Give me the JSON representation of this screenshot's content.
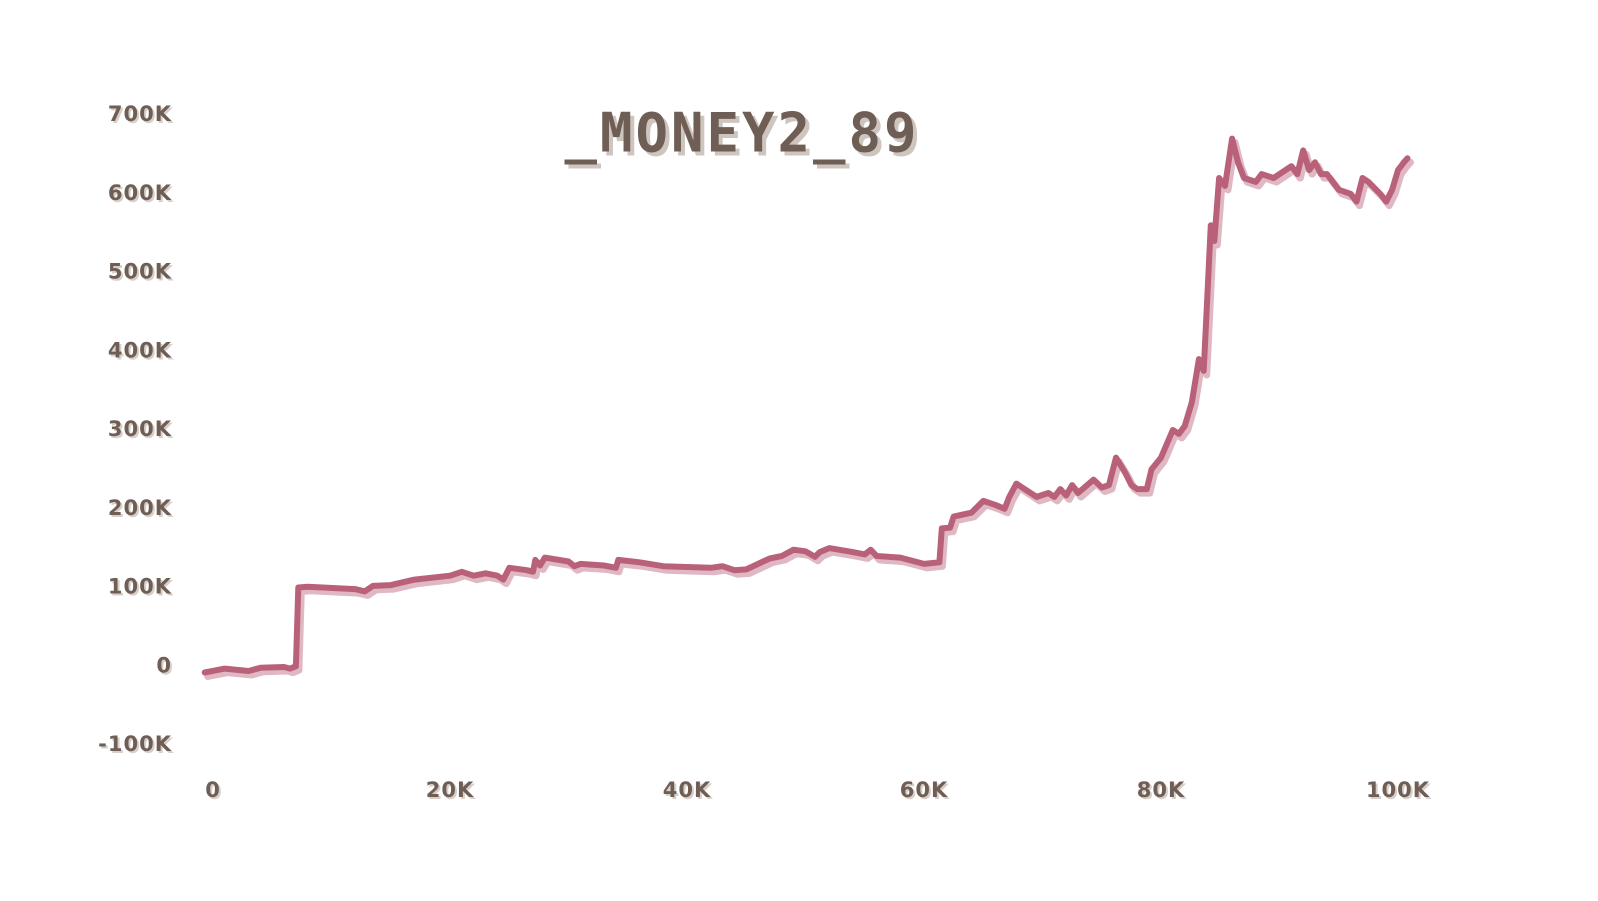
{
  "chart_data": {
    "type": "line",
    "title": "_MONEY2_89",
    "x": [
      -700,
      1000,
      3000,
      4000,
      6000,
      6500,
      7000,
      7200,
      8000,
      12000,
      12800,
      13500,
      15000,
      17000,
      20000,
      21000,
      22000,
      23000,
      24000,
      24500,
      25000,
      26500,
      27000,
      27200,
      27600,
      28000,
      30000,
      30500,
      31000,
      33000,
      34000,
      34200,
      36000,
      38000,
      40000,
      42000,
      43000,
      44000,
      45000,
      46000,
      47000,
      48000,
      49000,
      50000,
      50800,
      51200,
      52000,
      54000,
      55000,
      55500,
      56000,
      58000,
      60000,
      61300,
      61500,
      62200,
      62500,
      64000,
      65000,
      66000,
      66800,
      67200,
      67800,
      68500,
      69500,
      70500,
      71000,
      71500,
      72000,
      72500,
      73000,
      74300,
      75000,
      75600,
      76200,
      77000,
      77500,
      78000,
      78800,
      79200,
      80000,
      81000,
      81500,
      82000,
      82600,
      83200,
      83600,
      84200,
      84500,
      84900,
      85400,
      86000,
      86500,
      87000,
      88000,
      88500,
      89500,
      90500,
      91000,
      91500,
      92000,
      92500,
      93000,
      93500,
      94000,
      95000,
      96000,
      96500,
      97000,
      97500,
      98500,
      99000,
      99500,
      100000,
      100500,
      100800
    ],
    "series": [
      {
        "color": "#b86179",
        "values": [
          -8000,
          -3000,
          -6000,
          -2000,
          -1000,
          -3000,
          0,
          100000,
          101000,
          98000,
          95000,
          102000,
          103000,
          110000,
          115000,
          120000,
          115000,
          118000,
          115000,
          110000,
          125000,
          122000,
          120000,
          135000,
          128000,
          138000,
          133000,
          127000,
          130000,
          128000,
          125000,
          135000,
          132000,
          127000,
          126000,
          125000,
          127000,
          122000,
          123000,
          130000,
          137000,
          140000,
          148000,
          146000,
          139000,
          145000,
          150000,
          145000,
          142000,
          148000,
          140000,
          138000,
          130000,
          132000,
          175000,
          176000,
          190000,
          195000,
          210000,
          205000,
          200000,
          215000,
          232000,
          225000,
          215000,
          220000,
          215000,
          225000,
          217000,
          230000,
          220000,
          237000,
          227000,
          230000,
          265000,
          245000,
          230000,
          225000,
          225000,
          250000,
          265000,
          300000,
          295000,
          305000,
          335000,
          390000,
          375000,
          560000,
          540000,
          620000,
          610000,
          670000,
          640000,
          620000,
          615000,
          625000,
          620000,
          630000,
          635000,
          625000,
          655000,
          630000,
          640000,
          625000,
          625000,
          605000,
          600000,
          590000,
          620000,
          615000,
          600000,
          590000,
          605000,
          630000,
          640000,
          645000
        ]
      }
    ],
    "xlim": [
      0,
      100000
    ],
    "xticks": [
      0,
      {
        "value": 20000,
        "label": "20K"
      },
      {
        "value": 40000,
        "label": "40K"
      },
      {
        "value": 60000,
        "label": "60K"
      },
      {
        "value": 80000,
        "label": "80K"
      },
      {
        "value": 100000,
        "label": "100K"
      }
    ],
    "ylim": [
      -100000,
      700000
    ],
    "yticks": [
      {
        "value": -100000,
        "label": "-100K"
      },
      0,
      {
        "value": 100000,
        "label": "100K"
      },
      {
        "value": 200000,
        "label": "200K"
      },
      {
        "value": 300000,
        "label": "300K"
      },
      {
        "value": 400000,
        "label": "400K"
      },
      {
        "value": 500000,
        "label": "500K"
      },
      {
        "value": 600000,
        "label": "600K"
      },
      {
        "value": 700000,
        "label": "700K"
      }
    ]
  }
}
